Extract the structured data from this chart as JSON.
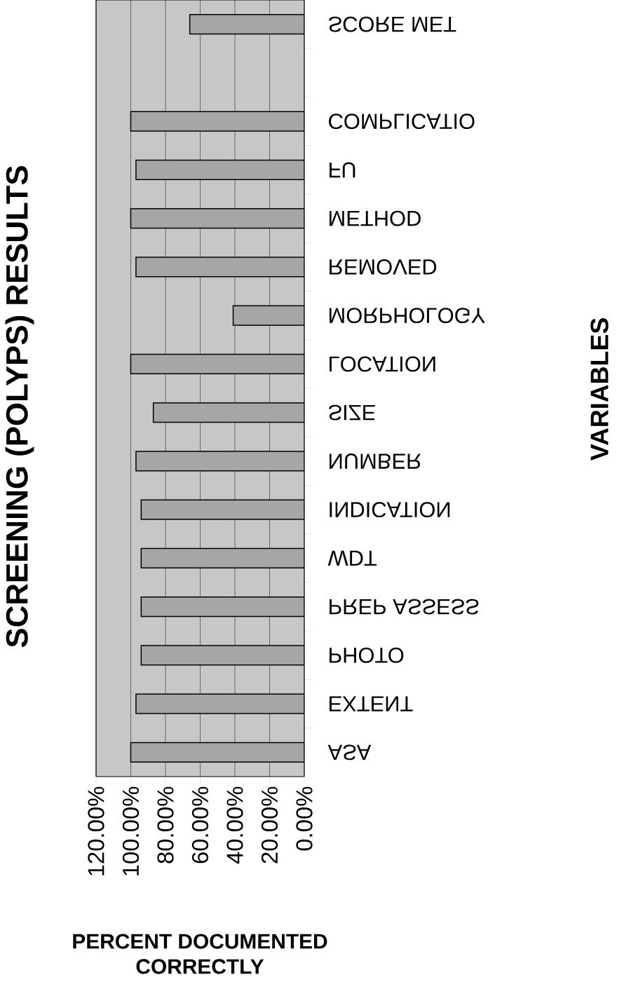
{
  "chart_data": {
    "type": "bar",
    "orientation": "horizontal",
    "title": "SCREENING (POLYPS) RESULTS",
    "xlabel": "PERCENT DOCUMENTED CORRECTLY",
    "ylabel": "VARIABLES",
    "categories": [
      "SCORE MET",
      null,
      "COMPLICATIO",
      "FU",
      "METHOD",
      "REMOVED",
      "MORPHOLOGY",
      "LOCATION",
      "SIZE",
      "NUMBER",
      "INDICATION",
      "WDT",
      "PREP ASSESS",
      "PHOTO",
      "EXTENT",
      "ASA"
    ],
    "values": [
      66,
      null,
      100,
      97,
      100,
      97,
      41,
      100,
      87,
      97,
      94,
      94,
      94,
      94,
      97,
      100
    ],
    "color": "#a6a6a6",
    "xlim": [
      120,
      0
    ],
    "xticks": [
      {
        "value": 0,
        "label": "0.00%"
      },
      {
        "value": 20,
        "label": "20.00%"
      },
      {
        "value": 40,
        "label": "40.00%"
      },
      {
        "value": 60,
        "label": "60.00%"
      },
      {
        "value": 80,
        "label": "80.00%"
      },
      {
        "value": 100,
        "label": "100.00%"
      },
      {
        "value": 120,
        "label": "120.00%"
      }
    ],
    "grid": "x"
  }
}
